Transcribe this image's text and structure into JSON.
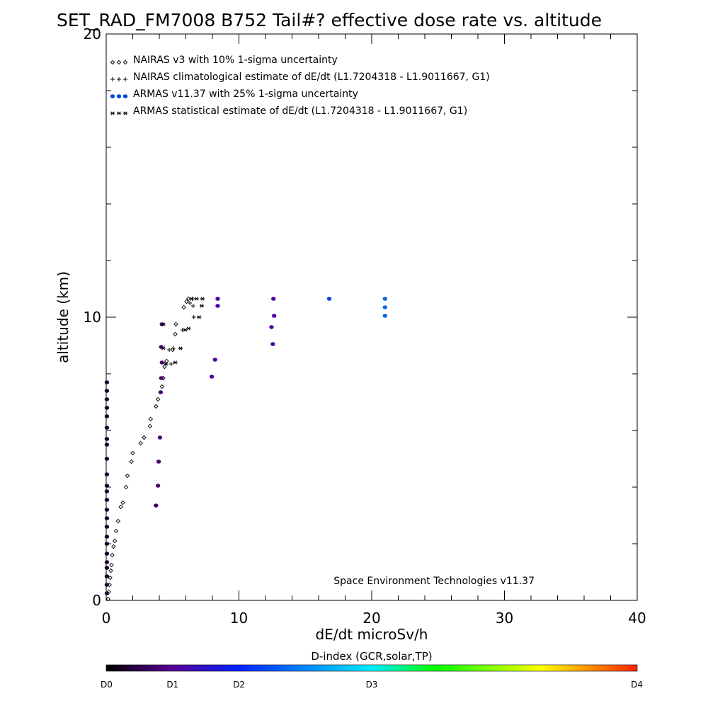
{
  "chart_data": {
    "type": "scatter",
    "title": "SET_RAD_FM7008  B752 Tail#? effective dose rate vs. altitude",
    "xlabel": "dE/dt microSv/h",
    "ylabel": "altitude (km)",
    "xlim": [
      0,
      40
    ],
    "ylim": [
      0,
      20
    ],
    "xticks": [
      "0",
      "10",
      "20",
      "30",
      "40"
    ],
    "yticks": [
      "0",
      "10",
      "20"
    ],
    "grid": false,
    "legend_position": "top-left",
    "credit": "Space Environment Technologies v11.37",
    "series": [
      {
        "name": "NAIRAS v3 with 10% 1-sigma uncertainty",
        "marker": "diamond",
        "color": "#000000",
        "points": [
          [
            0.15,
            0.05
          ],
          [
            0.2,
            0.3
          ],
          [
            0.25,
            0.55
          ],
          [
            0.3,
            0.8
          ],
          [
            0.35,
            1.05
          ],
          [
            0.4,
            1.25
          ],
          [
            0.45,
            1.6
          ],
          [
            0.55,
            1.9
          ],
          [
            0.65,
            2.1
          ],
          [
            0.75,
            2.45
          ],
          [
            0.9,
            2.8
          ],
          [
            1.1,
            3.3
          ],
          [
            1.25,
            3.45
          ],
          [
            1.5,
            4.0
          ],
          [
            1.6,
            4.4
          ],
          [
            1.9,
            4.9
          ],
          [
            2.0,
            5.2
          ],
          [
            2.6,
            5.55
          ],
          [
            2.85,
            5.75
          ],
          [
            3.3,
            6.15
          ],
          [
            3.35,
            6.4
          ],
          [
            3.75,
            6.85
          ],
          [
            3.9,
            7.1
          ],
          [
            4.2,
            7.55
          ],
          [
            4.3,
            7.85
          ],
          [
            4.4,
            8.25
          ],
          [
            4.55,
            8.45
          ],
          [
            5.0,
            8.85
          ],
          [
            5.2,
            9.4
          ],
          [
            5.25,
            9.75
          ],
          [
            5.85,
            10.35
          ],
          [
            6.05,
            10.55
          ],
          [
            6.2,
            10.65
          ]
        ]
      },
      {
        "name": "NAIRAS climatological estimate of dE/dt (L1.7204318 - L1.9011667, G1)",
        "marker": "plus",
        "color": "#000000",
        "points": [
          [
            4.75,
            8.85
          ],
          [
            5.05,
            8.9
          ],
          [
            4.9,
            8.35
          ],
          [
            5.75,
            9.55
          ],
          [
            6.6,
            10.0
          ],
          [
            6.55,
            10.4
          ],
          [
            6.3,
            10.5
          ],
          [
            6.5,
            10.65
          ]
        ]
      },
      {
        "name": "ARMAS v11.37 with 25% 1-sigma uncertainty",
        "marker": "filled-circle",
        "color_by": "D-index",
        "points": [
          [
            0.05,
            0.25
          ],
          [
            0.05,
            0.55
          ],
          [
            0.05,
            0.85
          ],
          [
            0.05,
            1.15
          ],
          [
            0.05,
            1.35
          ],
          [
            0.05,
            1.65
          ],
          [
            0.05,
            2.0
          ],
          [
            0.05,
            2.25
          ],
          [
            0.05,
            2.6
          ],
          [
            0.05,
            2.9
          ],
          [
            0.05,
            3.2
          ],
          [
            0.05,
            3.55
          ],
          [
            0.05,
            3.85
          ],
          [
            0.05,
            4.05
          ],
          [
            0.05,
            4.45
          ],
          [
            0.05,
            5.0
          ],
          [
            0.05,
            5.5
          ],
          [
            0.05,
            5.7
          ],
          [
            0.05,
            6.1
          ],
          [
            0.05,
            6.5
          ],
          [
            0.05,
            6.8
          ],
          [
            0.05,
            7.1
          ],
          [
            0.05,
            7.4
          ],
          [
            0.05,
            7.7
          ],
          [
            3.75,
            3.35
          ],
          [
            3.9,
            4.05
          ],
          [
            3.95,
            4.9
          ],
          [
            4.05,
            5.75
          ],
          [
            4.1,
            7.35
          ],
          [
            4.15,
            7.85
          ],
          [
            4.2,
            8.4
          ],
          [
            4.15,
            8.95
          ],
          [
            4.2,
            9.75
          ],
          [
            7.95,
            7.9
          ],
          [
            8.2,
            8.5
          ],
          [
            8.4,
            10.4
          ],
          [
            8.4,
            10.65
          ],
          [
            12.55,
            9.05
          ],
          [
            12.45,
            9.65
          ],
          [
            12.65,
            10.05
          ],
          [
            12.6,
            10.65
          ],
          [
            16.8,
            10.65
          ],
          [
            21.0,
            10.05
          ],
          [
            21.0,
            10.35
          ],
          [
            21.0,
            10.65
          ]
        ]
      },
      {
        "name": "ARMAS statistical estimate of dE/dt (L1.7204318 - L1.9011667, G1)",
        "marker": "asterisk",
        "color": "#000000",
        "points": [
          [
            4.5,
            8.35
          ],
          [
            5.2,
            8.4
          ],
          [
            5.6,
            8.9
          ],
          [
            5.95,
            9.55
          ],
          [
            6.2,
            9.6
          ],
          [
            7.0,
            10.0
          ],
          [
            7.2,
            10.4
          ],
          [
            6.45,
            10.65
          ],
          [
            6.8,
            10.65
          ],
          [
            7.25,
            10.65
          ],
          [
            4.3,
            9.75
          ],
          [
            4.3,
            8.9
          ]
        ]
      }
    ],
    "colorbar": {
      "title": "D-index (GCR,solar,TP)",
      "labels": [
        "D0",
        "D1",
        "D2",
        "D3",
        "D4"
      ],
      "label_positions": [
        0,
        0.125,
        0.25,
        0.5,
        1.0
      ],
      "colors": [
        "#000000",
        "#5a0099",
        "#0022ff",
        "#00eeff",
        "#00ff00",
        "#ffff00",
        "#ff2200"
      ]
    }
  }
}
